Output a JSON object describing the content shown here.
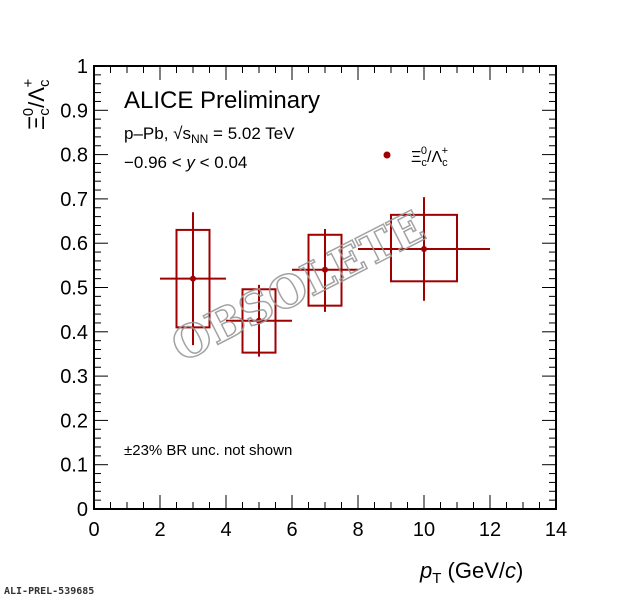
{
  "chart_data": {
    "type": "scatter",
    "title": "ALICE Preliminary",
    "annotations": [
      "p–Pb, √s",
      "NN",
      " = 5.02 TeV",
      "−0.96 < ",
      "y",
      " < 0.04",
      "±23% BR unc. not shown"
    ],
    "xlabel": {
      "main": "p",
      "sub": "T",
      "unit": " (GeV/",
      "unit_italic": "c",
      "close": ")"
    },
    "ylabel": {
      "xi": "Ξ",
      "xi_sub": "c",
      "xi_sup": "0",
      "slash": "/",
      "lambda": "Λ",
      "lambda_sub": "c",
      "lambda_sup": "+"
    },
    "xlim": [
      0,
      14
    ],
    "ylim": [
      0,
      1
    ],
    "xticks": [
      0,
      2,
      4,
      6,
      8,
      10,
      12,
      14
    ],
    "yticks": [
      0,
      0.1,
      0.2,
      0.3,
      0.4,
      0.5,
      0.6,
      0.7,
      0.8,
      0.9,
      1
    ],
    "ytick_labels": [
      "0",
      "0.1",
      "0.2",
      "0.3",
      "0.4",
      "0.5",
      "0.6",
      "0.7",
      "0.8",
      "0.9",
      "1"
    ],
    "grid": false,
    "legend_position": "top-right",
    "series": [
      {
        "name": "Ξc0/Λc+",
        "color": "#a00000",
        "points": [
          {
            "x": 3,
            "xlow": 2,
            "xhigh": 4,
            "y": 0.52,
            "stat_low": 0.37,
            "stat_high": 0.67,
            "sys_low": 0.41,
            "sys_high": 0.63,
            "sys_xlow": 2.5,
            "sys_xhigh": 3.5
          },
          {
            "x": 5,
            "xlow": 4,
            "xhigh": 6,
            "y": 0.425,
            "stat_low": 0.344,
            "stat_high": 0.506,
            "sys_low": 0.353,
            "sys_high": 0.496,
            "sys_xlow": 4.5,
            "sys_xhigh": 5.5
          },
          {
            "x": 7,
            "xlow": 6,
            "xhigh": 8,
            "y": 0.54,
            "stat_low": 0.445,
            "stat_high": 0.632,
            "sys_low": 0.459,
            "sys_high": 0.619,
            "sys_xlow": 6.5,
            "sys_xhigh": 7.5
          },
          {
            "x": 10,
            "xlow": 8,
            "xhigh": 12,
            "y": 0.587,
            "stat_low": 0.47,
            "stat_high": 0.704,
            "sys_low": 0.514,
            "sys_high": 0.664,
            "sys_xlow": 9,
            "sys_xhigh": 11
          }
        ]
      }
    ],
    "watermark": "OBSOLETE"
  },
  "footer": "ALI-PREL-539685"
}
